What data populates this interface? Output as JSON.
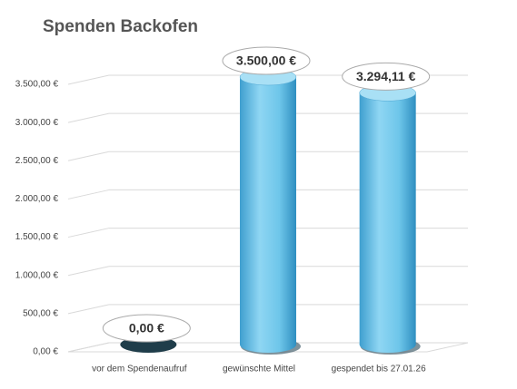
{
  "chart_data": {
    "type": "bar",
    "title": "Spenden Backofen",
    "categories": [
      "vor dem Spendenaufruf",
      "gewünschte Mittel",
      "gespendet bis 27.01.26"
    ],
    "values": [
      0,
      3500,
      3294.11
    ],
    "value_labels": [
      "0,00 €",
      "3.500,00 €",
      "3.294,11 €"
    ],
    "color": "#6ec6ea",
    "ylim": [
      0,
      3500
    ],
    "yticks": [
      {
        "value": 0,
        "label": "0,00 €"
      },
      {
        "value": 500,
        "label": "500,00 €"
      },
      {
        "value": 1000,
        "label": "1.000,00 €"
      },
      {
        "value": 1500,
        "label": "1.500,00 €"
      },
      {
        "value": 2000,
        "label": "2.000,00 €"
      },
      {
        "value": 2500,
        "label": "2.500,00 €"
      },
      {
        "value": 3000,
        "label": "3.000,00 €"
      },
      {
        "value": 3500,
        "label": "3.500,00 €"
      }
    ],
    "grid": true
  }
}
